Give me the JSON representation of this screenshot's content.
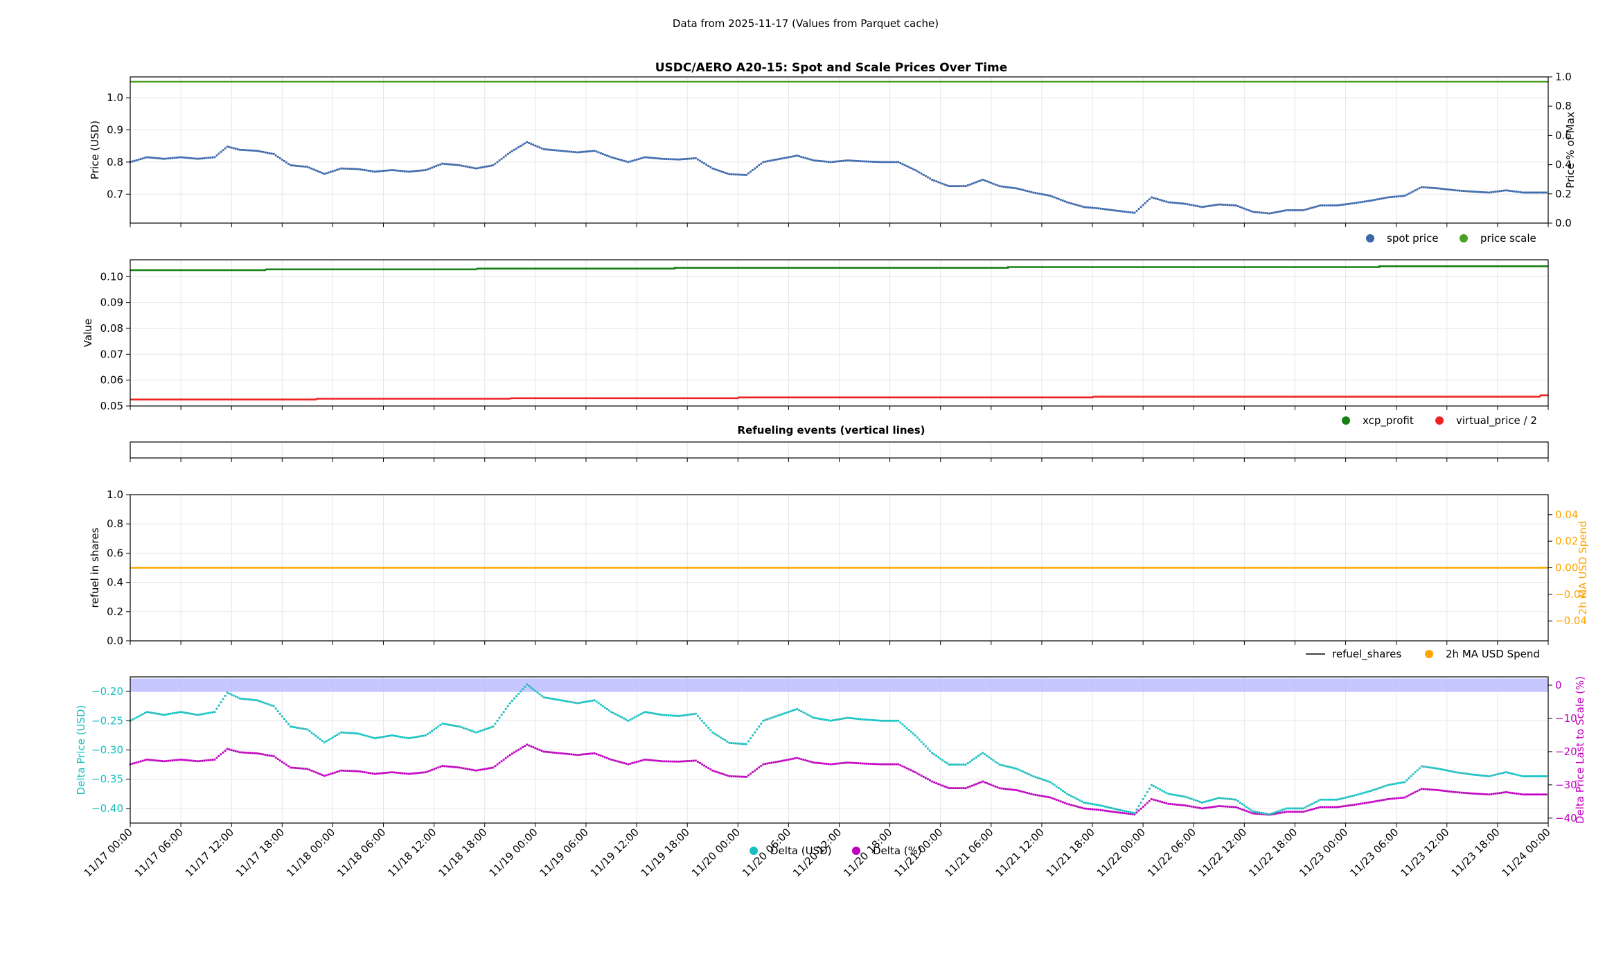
{
  "figure": {
    "suptitle": "Data from 2025-11-17 (Values from Parquet cache)"
  },
  "x_axis": {
    "tick_labels": [
      "11/17 00:00",
      "11/17 06:00",
      "11/17 12:00",
      "11/17 18:00",
      "11/18 00:00",
      "11/18 06:00",
      "11/18 12:00",
      "11/18 18:00",
      "11/19 00:00",
      "11/19 06:00",
      "11/19 12:00",
      "11/19 18:00",
      "11/20 00:00",
      "11/20 06:00",
      "11/20 12:00",
      "11/20 18:00",
      "11/21 00:00",
      "11/21 06:00",
      "11/21 12:00",
      "11/21 18:00",
      "11/22 00:00",
      "11/22 06:00",
      "11/22 12:00",
      "11/22 18:00",
      "11/23 00:00",
      "11/23 06:00",
      "11/23 12:00",
      "11/23 18:00",
      "11/24 00:00"
    ],
    "range_hours": [
      0,
      168
    ]
  },
  "colors": {
    "spot": "#3a66aa",
    "scale": "#4aa022",
    "xcp": "#178017",
    "virtual": "#ee2222",
    "ma": "#ffa500",
    "refuel": "#000000",
    "delta_usd": "#17bfbf",
    "delta_pct": "#bf00bf",
    "band": "#b4b4ff",
    "grid": "#e6e6e6"
  },
  "chart_data": [
    {
      "type": "line",
      "title": "USDC/AERO A20-15: Spot and Scale Prices Over Time",
      "ylabel": "Price (USD)",
      "ylim": [
        0.61,
        1.065
      ],
      "yticks": [
        "0.7",
        "0.8",
        "0.9",
        "1.0"
      ],
      "y2label": "Price % of Max",
      "y2lim": [
        0,
        1
      ],
      "y2ticks": [
        "0.0",
        "0.2",
        "0.4",
        "0.6",
        "0.8",
        "1.0"
      ],
      "grid": true,
      "legend": "below-right",
      "series": [
        {
          "name": "spot price",
          "style": "dots",
          "x": [
            0,
            2,
            4,
            6,
            8,
            10,
            11.5,
            13,
            15,
            17,
            19,
            21,
            23,
            25,
            27,
            29,
            31,
            33,
            35,
            37,
            39,
            41,
            43,
            45,
            47,
            49,
            51,
            53,
            55,
            57,
            59,
            61,
            63,
            65,
            67,
            69,
            71,
            73,
            75,
            77,
            79,
            81,
            83,
            85,
            87,
            89,
            91,
            93,
            95,
            97,
            99,
            101,
            103,
            105,
            107,
            109,
            111,
            113,
            115,
            117,
            119,
            121,
            123,
            125,
            127,
            129,
            131,
            133,
            135,
            137,
            139,
            141,
            143,
            145,
            147,
            149,
            151,
            153,
            155,
            157,
            159,
            161,
            163,
            165,
            168
          ],
          "y": [
            0.8,
            0.815,
            0.81,
            0.815,
            0.81,
            0.815,
            0.848,
            0.838,
            0.835,
            0.825,
            0.79,
            0.785,
            0.763,
            0.78,
            0.778,
            0.77,
            0.775,
            0.77,
            0.775,
            0.795,
            0.79,
            0.78,
            0.79,
            0.83,
            0.862,
            0.84,
            0.835,
            0.83,
            0.835,
            0.815,
            0.8,
            0.815,
            0.81,
            0.808,
            0.812,
            0.78,
            0.762,
            0.76,
            0.8,
            0.81,
            0.82,
            0.805,
            0.8,
            0.805,
            0.802,
            0.8,
            0.8,
            0.775,
            0.745,
            0.725,
            0.725,
            0.745,
            0.725,
            0.718,
            0.705,
            0.695,
            0.675,
            0.66,
            0.655,
            0.648,
            0.642,
            0.69,
            0.675,
            0.67,
            0.66,
            0.668,
            0.665,
            0.645,
            0.64,
            0.65,
            0.65,
            0.665,
            0.665,
            0.672,
            0.68,
            0.69,
            0.695,
            0.722,
            0.718,
            0.712,
            0.708,
            0.705,
            0.712,
            0.705,
            0.705
          ]
        },
        {
          "name": "price scale",
          "style": "line",
          "x": [
            0,
            168
          ],
          "y": [
            1.05,
            1.05
          ]
        }
      ]
    },
    {
      "type": "line",
      "title": "",
      "ylabel": "Value",
      "ylim": [
        0.05,
        0.1065
      ],
      "yticks": [
        "0.05",
        "0.06",
        "0.07",
        "0.08",
        "0.09",
        "0.10"
      ],
      "grid": true,
      "legend": "below-right",
      "series": [
        {
          "name": "xcp_profit",
          "style": "step",
          "x": [
            0,
            16,
            16.1,
            41,
            41.1,
            64.5,
            64.5,
            104,
            104,
            148,
            148,
            168
          ],
          "y": [
            0.1025,
            0.1025,
            0.1028,
            0.1028,
            0.1031,
            0.1031,
            0.1034,
            0.1034,
            0.1037,
            0.1037,
            0.104,
            0.104
          ]
        },
        {
          "name": "virtual_price / 2",
          "style": "step",
          "x": [
            0,
            22,
            22.1,
            45,
            45.1,
            72,
            72.1,
            114,
            114.1,
            167,
            167.1,
            168
          ],
          "y": [
            0.0525,
            0.0525,
            0.0528,
            0.0528,
            0.053,
            0.053,
            0.0533,
            0.0533,
            0.0536,
            0.0536,
            0.0541,
            0.0541
          ]
        }
      ]
    },
    {
      "type": "line",
      "title": "Refueling events (vertical lines)",
      "series": []
    },
    {
      "type": "line",
      "title": "",
      "ylabel": "refuel in shares",
      "ylim": [
        0,
        1
      ],
      "yticks": [
        "0.0",
        "0.2",
        "0.4",
        "0.6",
        "0.8",
        "1.0"
      ],
      "y2label": "2h MA USD Spend",
      "y2lim": [
        -0.055,
        0.055
      ],
      "y2ticks": [
        "−0.04",
        "−0.02",
        "0.00",
        "0.02",
        "0.04"
      ],
      "grid": true,
      "legend": "below-right",
      "series": [
        {
          "name": "refuel_shares",
          "style": "line",
          "x": [],
          "y": []
        },
        {
          "name": "2h MA USD Spend",
          "style": "line",
          "axis": "right",
          "x": [
            0,
            168
          ],
          "y": [
            0,
            0
          ]
        }
      ]
    },
    {
      "type": "line",
      "title": "",
      "ylabel": "Delta Price (USD)",
      "ylim": [
        -0.425,
        -0.175
      ],
      "yticks": [
        "−0.40",
        "−0.35",
        "−0.30",
        "−0.25",
        "−0.20"
      ],
      "y2label": "Delta Price Last to Scale (%)",
      "y2lim": [
        -41.5,
        2.5
      ],
      "y2ticks": [
        "−40",
        "−30",
        "−20",
        "−10",
        "0"
      ],
      "band_y2": [
        -2,
        2
      ],
      "grid": true,
      "legend": "bottom-center",
      "series": [
        {
          "name": "Delta (USD)",
          "style": "dots",
          "x": [
            0,
            2,
            4,
            6,
            8,
            10,
            11.5,
            13,
            15,
            17,
            19,
            21,
            23,
            25,
            27,
            29,
            31,
            33,
            35,
            37,
            39,
            41,
            43,
            45,
            47,
            49,
            51,
            53,
            55,
            57,
            59,
            61,
            63,
            65,
            67,
            69,
            71,
            73,
            75,
            77,
            79,
            81,
            83,
            85,
            87,
            89,
            91,
            93,
            95,
            97,
            99,
            101,
            103,
            105,
            107,
            109,
            111,
            113,
            115,
            117,
            119,
            121,
            123,
            125,
            127,
            129,
            131,
            133,
            135,
            137,
            139,
            141,
            143,
            145,
            147,
            149,
            151,
            153,
            155,
            157,
            159,
            161,
            163,
            165,
            168
          ],
          "y": [
            -0.25,
            -0.235,
            -0.24,
            -0.235,
            -0.24,
            -0.235,
            -0.202,
            -0.212,
            -0.215,
            -0.225,
            -0.26,
            -0.265,
            -0.287,
            -0.27,
            -0.272,
            -0.28,
            -0.275,
            -0.28,
            -0.275,
            -0.255,
            -0.26,
            -0.27,
            -0.26,
            -0.22,
            -0.188,
            -0.21,
            -0.215,
            -0.22,
            -0.215,
            -0.235,
            -0.25,
            -0.235,
            -0.24,
            -0.242,
            -0.238,
            -0.27,
            -0.288,
            -0.29,
            -0.25,
            -0.24,
            -0.23,
            -0.245,
            -0.25,
            -0.245,
            -0.248,
            -0.25,
            -0.25,
            -0.275,
            -0.305,
            -0.325,
            -0.325,
            -0.305,
            -0.325,
            -0.332,
            -0.345,
            -0.355,
            -0.375,
            -0.39,
            -0.395,
            -0.402,
            -0.408,
            -0.36,
            -0.375,
            -0.38,
            -0.39,
            -0.382,
            -0.385,
            -0.405,
            -0.41,
            -0.4,
            -0.4,
            -0.385,
            -0.385,
            -0.378,
            -0.37,
            -0.36,
            -0.355,
            -0.328,
            -0.332,
            -0.338,
            -0.342,
            -0.345,
            -0.338,
            -0.345,
            -0.345
          ]
        },
        {
          "name": "Delta (%)",
          "style": "dots",
          "axis": "right",
          "x": [
            0,
            2,
            4,
            6,
            8,
            10,
            11.5,
            13,
            15,
            17,
            19,
            21,
            23,
            25,
            27,
            29,
            31,
            33,
            35,
            37,
            39,
            41,
            43,
            45,
            47,
            49,
            51,
            53,
            55,
            57,
            59,
            61,
            63,
            65,
            67,
            69,
            71,
            73,
            75,
            77,
            79,
            81,
            83,
            85,
            87,
            89,
            91,
            93,
            95,
            97,
            99,
            101,
            103,
            105,
            107,
            109,
            111,
            113,
            115,
            117,
            119,
            121,
            123,
            125,
            127,
            129,
            131,
            133,
            135,
            137,
            139,
            141,
            143,
            145,
            147,
            149,
            151,
            153,
            155,
            157,
            159,
            161,
            163,
            165,
            168
          ],
          "y": [
            -23.8,
            -22.4,
            -22.9,
            -22.4,
            -22.9,
            -22.4,
            -19.2,
            -20.2,
            -20.5,
            -21.4,
            -24.8,
            -25.2,
            -27.3,
            -25.7,
            -25.9,
            -26.7,
            -26.2,
            -26.7,
            -26.2,
            -24.3,
            -24.8,
            -25.7,
            -24.8,
            -21.0,
            -17.9,
            -20.0,
            -20.5,
            -21.0,
            -20.5,
            -22.4,
            -23.8,
            -22.4,
            -22.9,
            -23.0,
            -22.7,
            -25.7,
            -27.4,
            -27.6,
            -23.8,
            -22.9,
            -21.9,
            -23.3,
            -23.8,
            -23.3,
            -23.6,
            -23.8,
            -23.8,
            -26.2,
            -29.0,
            -31.0,
            -31.0,
            -29.0,
            -31.0,
            -31.6,
            -32.9,
            -33.8,
            -35.7,
            -37.1,
            -37.6,
            -38.3,
            -38.9,
            -34.3,
            -35.7,
            -36.2,
            -37.1,
            -36.4,
            -36.7,
            -38.6,
            -39.0,
            -38.1,
            -38.1,
            -36.7,
            -36.7,
            -36.0,
            -35.2,
            -34.3,
            -33.8,
            -31.2,
            -31.6,
            -32.2,
            -32.6,
            -32.9,
            -32.2,
            -32.9,
            -32.9
          ]
        }
      ]
    }
  ]
}
